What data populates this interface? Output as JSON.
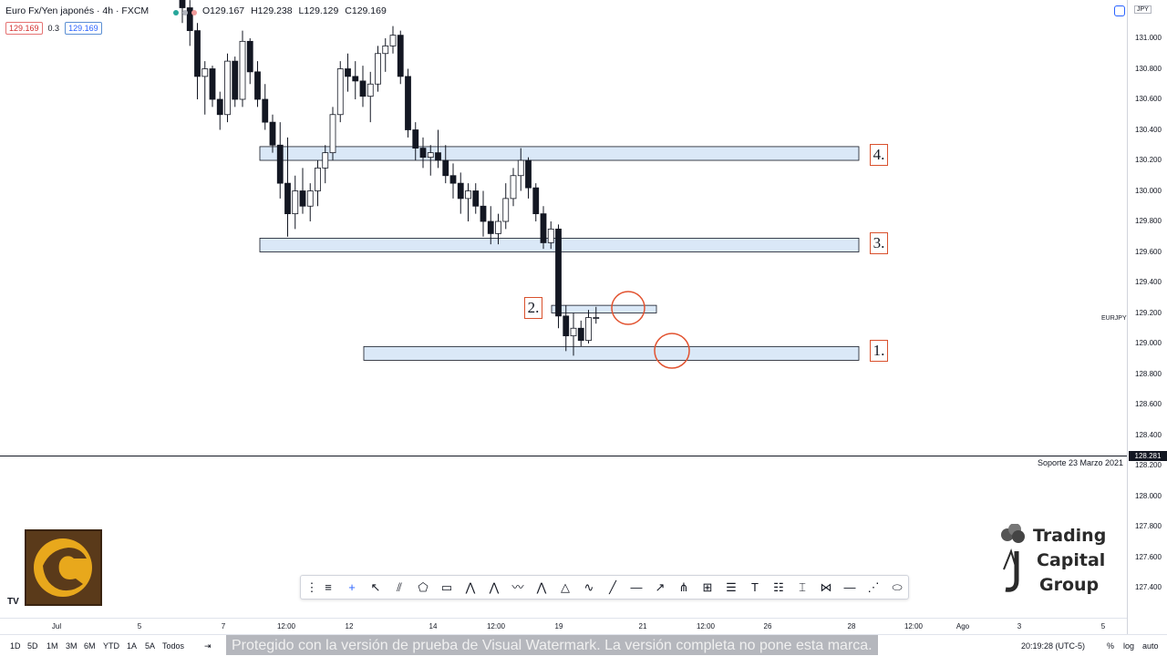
{
  "header": {
    "title": "Euro Fx/Yen japonés · 4h · FXCM",
    "ohlc": [
      {
        "k": "O",
        "v": "129.167"
      },
      {
        "k": "H",
        "v": "129.238"
      },
      {
        "k": "L",
        "v": "129.129"
      },
      {
        "k": "C",
        "v": "129.169"
      }
    ],
    "bid": "129.169",
    "spread": "0.3",
    "ask": "129.169",
    "dot_colors": [
      "#26a69a",
      "#787b86",
      "#ef5350"
    ]
  },
  "price_axis": {
    "currency": "JPY",
    "symbol": "EURJPY",
    "ticks": [
      "131.000",
      "130.800",
      "130.600",
      "130.400",
      "130.200",
      "130.000",
      "129.800",
      "129.600",
      "129.400",
      "129.200",
      "129.000",
      "128.800",
      "128.600",
      "128.400",
      "128.200",
      "128.000",
      "127.800",
      "127.600",
      "127.400"
    ],
    "marker": "128.281"
  },
  "time_axis": [
    "Jul",
    "5",
    "7",
    "12:00",
    "12",
    "14",
    "12:00",
    "19",
    "21",
    "12:00",
    "26",
    "28",
    "12:00",
    "Ago",
    "3",
    "5"
  ],
  "annotation": "Soporte 23 Marzo 2021",
  "zones": [
    {
      "label": "4.",
      "low": 130.2,
      "high": 130.29
    },
    {
      "label": "3.",
      "low": 129.6,
      "high": 129.69
    },
    {
      "label": "2.",
      "low": 129.2,
      "high": 129.25
    },
    {
      "label": "1.",
      "low": 128.89,
      "high": 128.98
    }
  ],
  "ranges": [
    "1D",
    "5D",
    "1M",
    "3M",
    "6M",
    "YTD",
    "1A",
    "5A",
    "Todos"
  ],
  "watermark": "Protegido con la versión de prueba de Visual Watermark. La versión completa no pone esta marca.",
  "clock": "20:19:28 (UTC-5)",
  "bottom_right": [
    "%",
    "log",
    "auto"
  ],
  "brand": {
    "line1": "Trading",
    "line2": "Capital",
    "line3": "Group"
  },
  "tv_logo": "TV",
  "toolbar_icons": [
    "drag-handle-icon",
    "horizontal-lines-icon",
    "crosshair-icon",
    "arrow-cursor-icon",
    "channel-icon",
    "polygon-icon",
    "rectangle-icon",
    "xabcd-pattern-icon",
    "abcd-pattern-icon",
    "wave-pattern-icon",
    "head-shoulders-icon",
    "triangle-pattern-icon",
    "curve-icon",
    "trend-line-icon",
    "horizontal-ray-icon",
    "ray-icon",
    "pitchfork-icon",
    "gann-icon",
    "fib-retracement-icon",
    "text-icon",
    "fib-channel-icon",
    "measure-icon",
    "projection-icon",
    "horizontal-line-icon",
    "forecast-icon",
    "ellipse-icon"
  ],
  "candles": [
    [
      131.35,
      131.4,
      131.1,
      131.2
    ],
    [
      131.2,
      131.25,
      130.95,
      131.05
    ],
    [
      131.05,
      131.1,
      130.6,
      130.75
    ],
    [
      130.75,
      130.85,
      130.5,
      130.8
    ],
    [
      130.8,
      130.82,
      130.55,
      130.6
    ],
    [
      130.6,
      130.65,
      130.4,
      130.5
    ],
    [
      130.5,
      130.9,
      130.45,
      130.85
    ],
    [
      130.85,
      130.88,
      130.55,
      130.6
    ],
    [
      130.6,
      131.05,
      130.55,
      130.98
    ],
    [
      130.98,
      131.0,
      130.7,
      130.78
    ],
    [
      130.78,
      130.85,
      130.55,
      130.6
    ],
    [
      130.6,
      130.7,
      130.4,
      130.45
    ],
    [
      130.45,
      130.5,
      130.25,
      130.3
    ],
    [
      130.3,
      130.45,
      129.95,
      130.05
    ],
    [
      130.05,
      130.35,
      129.7,
      129.85
    ],
    [
      129.85,
      130.1,
      129.75,
      130.0
    ],
    [
      130.0,
      130.15,
      129.85,
      129.9
    ],
    [
      129.9,
      130.05,
      129.8,
      130.0
    ],
    [
      130.0,
      130.2,
      129.9,
      130.15
    ],
    [
      130.15,
      130.3,
      130.05,
      130.25
    ],
    [
      130.25,
      130.55,
      130.2,
      130.5
    ],
    [
      130.5,
      130.85,
      130.45,
      130.8
    ],
    [
      130.8,
      130.9,
      130.65,
      130.75
    ],
    [
      130.75,
      130.85,
      130.6,
      130.72
    ],
    [
      130.72,
      130.82,
      130.55,
      130.62
    ],
    [
      130.62,
      130.78,
      130.45,
      130.7
    ],
    [
      130.7,
      130.95,
      130.65,
      130.9
    ],
    [
      130.9,
      131.0,
      130.78,
      130.95
    ],
    [
      130.95,
      131.08,
      130.9,
      131.02
    ],
    [
      131.02,
      131.05,
      130.7,
      130.75
    ],
    [
      130.75,
      130.8,
      130.35,
      130.4
    ],
    [
      130.4,
      130.45,
      130.2,
      130.28
    ],
    [
      130.28,
      130.35,
      130.15,
      130.22
    ],
    [
      130.22,
      130.3,
      130.1,
      130.25
    ],
    [
      130.25,
      130.4,
      130.15,
      130.2
    ],
    [
      130.2,
      130.3,
      130.05,
      130.1
    ],
    [
      130.1,
      130.18,
      129.95,
      130.05
    ],
    [
      130.05,
      130.12,
      129.85,
      129.95
    ],
    [
      129.95,
      130.05,
      129.8,
      130.0
    ],
    [
      130.0,
      130.05,
      129.85,
      129.9
    ],
    [
      129.9,
      130.0,
      129.7,
      129.8
    ],
    [
      129.8,
      129.9,
      129.65,
      129.72
    ],
    [
      129.72,
      129.85,
      129.65,
      129.8
    ],
    [
      129.8,
      130.05,
      129.75,
      129.95
    ],
    [
      129.95,
      130.15,
      129.9,
      130.1
    ],
    [
      130.1,
      130.28,
      130.0,
      130.2
    ],
    [
      130.2,
      130.22,
      129.95,
      130.02
    ],
    [
      130.02,
      130.05,
      129.8,
      129.85
    ],
    [
      129.85,
      129.9,
      129.62,
      129.66
    ],
    [
      129.66,
      129.8,
      129.62,
      129.75
    ],
    [
      129.75,
      129.78,
      129.1,
      129.18
    ],
    [
      129.18,
      129.25,
      128.95,
      129.05
    ],
    [
      129.05,
      129.2,
      128.92,
      129.1
    ],
    [
      129.1,
      129.15,
      128.98,
      129.02
    ],
    [
      129.02,
      129.22,
      129.0,
      129.17
    ],
    [
      129.17,
      129.24,
      129.13,
      129.17
    ]
  ]
}
